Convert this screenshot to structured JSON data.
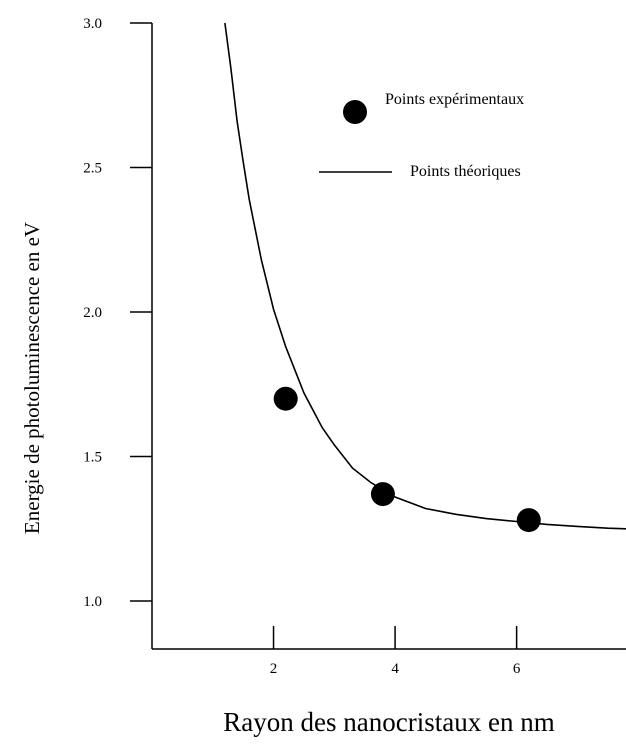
{
  "chart_data": {
    "type": "scatter",
    "title": "",
    "xlabel": "Rayon des nanocristaux en nm",
    "ylabel": "Energie de photoluminescence en eV",
    "xlim": [
      0,
      7.8
    ],
    "ylim": [
      0.85,
      3.0
    ],
    "x_ticks": [
      2,
      4,
      6
    ],
    "x_tick_labels": [
      "2",
      "4",
      "6"
    ],
    "y_ticks": [
      1.0,
      1.5,
      2.0,
      2.5,
      3.0
    ],
    "y_tick_labels": [
      "1.0",
      "1.5",
      "2.0",
      "2.5",
      "3.0"
    ],
    "grid": false,
    "legend_position": "top-right",
    "series": [
      {
        "name": "Points expérimentaux",
        "kind": "points",
        "color": "#000000",
        "x": [
          2.2,
          3.8,
          6.2
        ],
        "y": [
          1.7,
          1.37,
          1.28
        ]
      },
      {
        "name": "Points théoriques",
        "kind": "curve",
        "color": "#000000",
        "x": [
          1.2,
          1.3,
          1.4,
          1.5,
          1.6,
          1.8,
          2.0,
          2.2,
          2.5,
          2.8,
          3.0,
          3.3,
          3.6,
          4.0,
          4.5,
          5.0,
          5.5,
          6.0,
          6.5,
          7.0,
          7.5,
          7.8
        ],
        "y": [
          3.04,
          2.84,
          2.66,
          2.52,
          2.39,
          2.18,
          2.01,
          1.88,
          1.72,
          1.6,
          1.54,
          1.46,
          1.41,
          1.36,
          1.32,
          1.3,
          1.285,
          1.275,
          1.265,
          1.258,
          1.252,
          1.25
        ]
      }
    ]
  }
}
